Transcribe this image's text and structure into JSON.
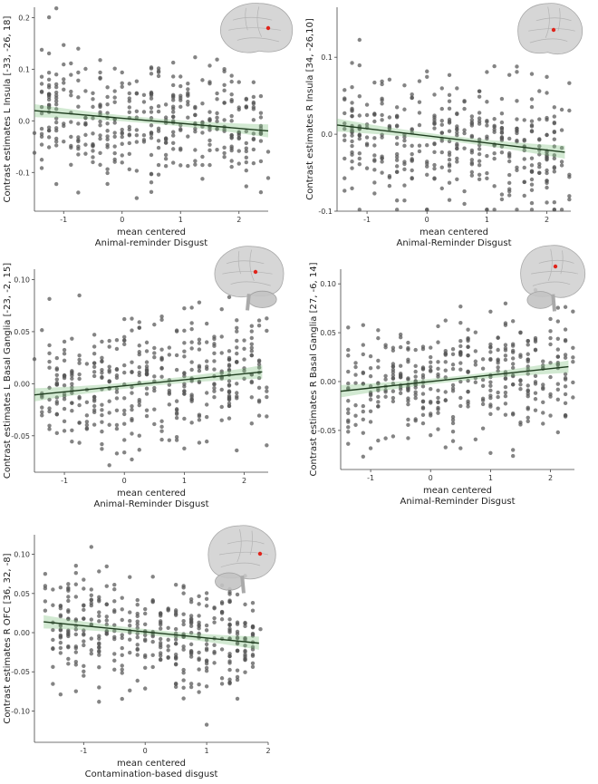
{
  "figure_title": "",
  "colors": {
    "point": "#555555",
    "trend_line": "#1f3d1f",
    "ci_band": "#7fbf7f",
    "brain": "#cfcfcf",
    "brain_outline": "#9a9a9a",
    "roi_marker": "#e0241b",
    "axis": "#444444"
  },
  "chart_data": [
    {
      "id": "panel-a",
      "type": "scatter",
      "title": "",
      "xlabel_line1": "mean centered",
      "xlabel_line2": "Animal-reminder Disgust",
      "ylabel": "Contrast estimates L Insula [-33, -26, 18]",
      "xlim": [
        -1.5,
        2.5
      ],
      "ylim": [
        -0.175,
        0.22
      ],
      "xticks": [
        -1,
        0,
        1,
        2
      ],
      "yticks": [
        -0.1,
        0.0,
        0.1,
        0.2
      ],
      "xtick_labels": [
        "-1",
        "0",
        "1",
        "2"
      ],
      "ytick_labels": [
        "-0.1",
        "0.0",
        "0.1",
        "0.2"
      ],
      "trend": {
        "intercept": 0.005,
        "slope": -0.0098,
        "x_range": [
          -1.5,
          2.5
        ]
      },
      "ci_halfwidth": 0.012,
      "n_points": 400,
      "x_spread": [
        -1.45,
        2.45
      ],
      "noise_sd": 0.06,
      "seed": 11,
      "brain_view": "left-lateral",
      "roi_marker_label": ""
    },
    {
      "id": "panel-b",
      "type": "scatter",
      "title": "",
      "xlabel_line1": "mean centered",
      "xlabel_line2": "Animal-Reminder Disgust",
      "ylabel": "Contrast estimates R Insula [34, -26,10]",
      "xlim": [
        -1.5,
        2.4
      ],
      "ylim": [
        -0.1,
        0.165
      ],
      "xticks": [
        -1,
        0,
        1,
        2
      ],
      "yticks": [
        -0.1,
        0.0,
        0.1
      ],
      "xtick_labels": [
        "-1",
        "0",
        "1",
        "2"
      ],
      "ytick_labels": [
        "-0.1",
        "0.0",
        "0.1"
      ],
      "trend": {
        "intercept": -0.002,
        "slope": -0.0093,
        "x_range": [
          -1.5,
          2.3
        ]
      },
      "ci_halfwidth": 0.008,
      "n_points": 400,
      "x_spread": [
        -1.45,
        2.35
      ],
      "noise_sd": 0.04,
      "seed": 23,
      "brain_view": "right-lateral",
      "roi_marker_label": ""
    },
    {
      "id": "panel-c",
      "type": "scatter",
      "title": "",
      "xlabel_line1": "mean centered",
      "xlabel_line2": "Animal-Reminder Disgust",
      "ylabel": "Contrast estimates L Basal Ganglia [-23, -2, 15]",
      "xlim": [
        -1.5,
        2.4
      ],
      "ylim": [
        -0.085,
        0.11
      ],
      "xticks": [
        -1,
        0,
        1,
        2
      ],
      "yticks": [
        -0.05,
        0.0,
        0.05,
        0.1
      ],
      "xtick_labels": [
        "-1",
        "0",
        "1",
        "2"
      ],
      "ytick_labels": [
        "-0.05",
        "0.00",
        "0.05",
        "0.10"
      ],
      "trend": {
        "intercept": -0.002,
        "slope": 0.0058,
        "x_range": [
          -1.5,
          2.3
        ]
      },
      "ci_halfwidth": 0.006,
      "n_points": 400,
      "x_spread": [
        -1.45,
        2.35
      ],
      "noise_sd": 0.03,
      "seed": 37,
      "brain_view": "left-medial",
      "roi_marker_label": ""
    },
    {
      "id": "panel-d",
      "type": "scatter",
      "title": "",
      "xlabel_line1": "mean centered",
      "xlabel_line2": "Animal-Reminder Disgust",
      "ylabel": "Contrast estimates R Basal Ganglia [27, -6, 14]",
      "xlim": [
        -1.5,
        2.4
      ],
      "ylim": [
        -0.09,
        0.115
      ],
      "xticks": [
        -1,
        0,
        1,
        2
      ],
      "yticks": [
        -0.05,
        0.0,
        0.05,
        0.1
      ],
      "xtick_labels": [
        "-1",
        "0",
        "1",
        "2"
      ],
      "ytick_labels": [
        "-0.05",
        "0.00",
        "0.05",
        "0.10"
      ],
      "trend": {
        "intercept": 0.0,
        "slope": 0.0066,
        "x_range": [
          -1.5,
          2.3
        ]
      },
      "ci_halfwidth": 0.006,
      "n_points": 400,
      "x_spread": [
        -1.45,
        2.35
      ],
      "noise_sd": 0.03,
      "seed": 53,
      "brain_view": "right-lateral-cerebellum",
      "roi_marker_label": ""
    },
    {
      "id": "panel-e",
      "type": "scatter",
      "title": "",
      "xlabel_line1": "mean centered",
      "xlabel_line2": "Contamination-based disgust",
      "ylabel": "Contrast estimates R OFC [36, 32, -8]",
      "xlim": [
        -1.8,
        2.0
      ],
      "ylim": [
        -0.14,
        0.125
      ],
      "xticks": [
        -1,
        0,
        1,
        2
      ],
      "yticks": [
        -0.1,
        -0.05,
        0.0,
        0.05,
        0.1
      ],
      "xtick_labels": [
        "-1",
        "0",
        "1",
        "2"
      ],
      "ytick_labels": [
        "-0.10",
        "-0.05",
        "0.00",
        "0.05",
        "0.10"
      ],
      "trend": {
        "intercept": 0.001,
        "slope": -0.0078,
        "x_range": [
          -1.65,
          1.85
        ]
      },
      "ci_halfwidth": 0.008,
      "n_points": 400,
      "x_spread": [
        -1.6,
        1.85
      ],
      "noise_sd": 0.035,
      "seed": 71,
      "brain_view": "right-lateral-cerebellum",
      "roi_marker_label": ""
    }
  ]
}
